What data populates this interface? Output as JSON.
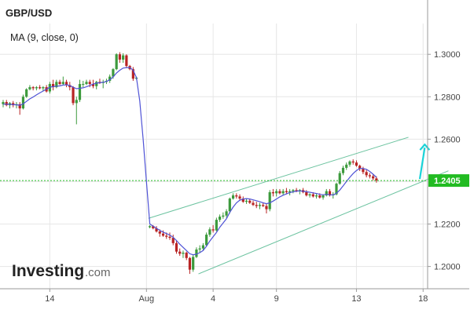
{
  "chart_data": {
    "type": "candlestick",
    "title": "GBP/USD",
    "indicator_label": "MA (9, close, 0)",
    "current_price_label": "1.2405",
    "current_price": 1.2405,
    "ylim": [
      1.1895,
      1.3145
    ],
    "y_ticks": [
      1.2,
      1.22,
      1.24,
      1.26,
      1.28,
      1.3
    ],
    "y_tick_labels": [
      "1.2000",
      "1.2200",
      "1.2400",
      "1.2600",
      "1.2800",
      "1.3000"
    ],
    "x_ticks": [
      {
        "label": "14",
        "index": 14
      },
      {
        "label": "Aug",
        "index": 43
      },
      {
        "label": "4",
        "index": 63
      },
      {
        "label": "9",
        "index": 82
      },
      {
        "label": "13",
        "index": 106
      },
      {
        "label": "18",
        "index": 126
      }
    ],
    "grid": true,
    "colors": {
      "up": "#3c9a3c",
      "down": "#b82424",
      "ma": "#4f53d6",
      "channel": "#6cc3a0",
      "price_line": "#22bb22",
      "arrow": "#19d3d8",
      "grid": "#e6e6e6"
    },
    "candles": [
      [
        1.2765,
        1.2785,
        1.275,
        1.2775
      ],
      [
        1.2775,
        1.2785,
        1.2755,
        1.276
      ],
      [
        1.276,
        1.2775,
        1.2745,
        1.277
      ],
      [
        1.277,
        1.278,
        1.275,
        1.276
      ],
      [
        1.276,
        1.2775,
        1.2745,
        1.2765
      ],
      [
        1.2765,
        1.2775,
        1.2715,
        1.2745
      ],
      [
        1.2745,
        1.281,
        1.274,
        1.28
      ],
      [
        1.28,
        1.284,
        1.2795,
        1.2835
      ],
      [
        1.2835,
        1.2855,
        1.283,
        1.2845
      ],
      [
        1.2845,
        1.285,
        1.283,
        1.284
      ],
      [
        1.284,
        1.285,
        1.283,
        1.2845
      ],
      [
        1.2845,
        1.2855,
        1.2835,
        1.284
      ],
      [
        1.284,
        1.285,
        1.2825,
        1.2845
      ],
      [
        1.2845,
        1.2855,
        1.282,
        1.2825
      ],
      [
        1.2825,
        1.287,
        1.2815,
        1.286
      ],
      [
        1.286,
        1.288,
        1.283,
        1.2845
      ],
      [
        1.2845,
        1.288,
        1.284,
        1.287
      ],
      [
        1.287,
        1.288,
        1.2855,
        1.286
      ],
      [
        1.286,
        1.2895,
        1.2855,
        1.287
      ],
      [
        1.287,
        1.288,
        1.2845,
        1.2855
      ],
      [
        1.2855,
        1.287,
        1.283,
        1.2845
      ],
      [
        1.2845,
        1.285,
        1.276,
        1.277
      ],
      [
        1.277,
        1.28,
        1.267,
        1.2785
      ],
      [
        1.2785,
        1.288,
        1.2775,
        1.286
      ],
      [
        1.286,
        1.2875,
        1.2845,
        1.286
      ],
      [
        1.286,
        1.288,
        1.2855,
        1.287
      ],
      [
        1.287,
        1.288,
        1.2845,
        1.286
      ],
      [
        1.286,
        1.288,
        1.284,
        1.285
      ],
      [
        1.285,
        1.2875,
        1.2835,
        1.287
      ],
      [
        1.287,
        1.2885,
        1.286,
        1.2865
      ],
      [
        1.2865,
        1.288,
        1.284,
        1.287
      ],
      [
        1.287,
        1.2885,
        1.286,
        1.2875
      ],
      [
        1.2875,
        1.2905,
        1.2865,
        1.2895
      ],
      [
        1.2895,
        1.2935,
        1.2885,
        1.293
      ],
      [
        1.293,
        1.3005,
        1.2925,
        1.3
      ],
      [
        1.3,
        1.301,
        1.296,
        1.2975
      ],
      [
        1.2975,
        1.3005,
        1.296,
        1.2995
      ],
      [
        1.2995,
        1.3,
        1.2935,
        1.2945
      ],
      [
        1.2945,
        1.295,
        1.2925,
        1.293
      ],
      [
        1.293,
        1.294,
        1.2875,
        1.2885
      ],
      [
        1.2885,
        1.2895,
        1.288,
        1.289
      ],
      null,
      null,
      null,
      [
        1.2185,
        1.2195,
        1.218,
        1.219
      ],
      [
        1.219,
        1.2195,
        1.2175,
        1.218
      ],
      [
        1.218,
        1.219,
        1.216,
        1.2165
      ],
      [
        1.2165,
        1.2175,
        1.214,
        1.2155
      ],
      [
        1.2155,
        1.217,
        1.214,
        1.2145
      ],
      [
        1.2145,
        1.216,
        1.213,
        1.214
      ],
      [
        1.214,
        1.216,
        1.2125,
        1.2135
      ],
      [
        1.2135,
        1.215,
        1.21,
        1.211
      ],
      [
        1.211,
        1.212,
        1.206,
        1.207
      ],
      [
        1.207,
        1.2085,
        1.205,
        1.206
      ],
      [
        1.206,
        1.2075,
        1.204,
        1.2065
      ],
      [
        1.2065,
        1.207,
        1.203,
        1.204
      ],
      [
        1.204,
        1.2045,
        1.1965,
        1.1985
      ],
      [
        1.1985,
        1.2055,
        1.1975,
        1.2045
      ],
      [
        1.2045,
        1.209,
        1.204,
        1.208
      ],
      [
        1.208,
        1.21,
        1.2065,
        1.2085
      ],
      [
        1.2085,
        1.211,
        1.2075,
        1.21
      ],
      [
        1.21,
        1.216,
        1.2095,
        1.215
      ],
      [
        1.215,
        1.2185,
        1.214,
        1.2175
      ],
      [
        1.2175,
        1.2195,
        1.216,
        1.217
      ],
      [
        1.217,
        1.223,
        1.2165,
        1.222
      ],
      [
        1.222,
        1.2245,
        1.221,
        1.2235
      ],
      [
        1.2235,
        1.2255,
        1.2225,
        1.224
      ],
      [
        1.224,
        1.227,
        1.223,
        1.226
      ],
      [
        1.226,
        1.2325,
        1.225,
        1.232
      ],
      [
        1.232,
        1.2345,
        1.2315,
        1.2335
      ],
      [
        1.2335,
        1.2345,
        1.232,
        1.233
      ],
      [
        1.233,
        1.234,
        1.231,
        1.232
      ],
      [
        1.232,
        1.233,
        1.23,
        1.2305
      ],
      [
        1.2305,
        1.232,
        1.2295,
        1.231
      ],
      [
        1.231,
        1.232,
        1.2295,
        1.23
      ],
      [
        1.23,
        1.231,
        1.2285,
        1.229
      ],
      [
        1.229,
        1.2305,
        1.2275,
        1.2285
      ],
      [
        1.2285,
        1.23,
        1.227,
        1.229
      ],
      [
        1.229,
        1.23,
        1.228,
        1.2285
      ],
      [
        1.2285,
        1.2295,
        1.225,
        1.227
      ],
      [
        1.227,
        1.236,
        1.226,
        1.235
      ],
      [
        1.235,
        1.2365,
        1.233,
        1.2345
      ],
      [
        1.2345,
        1.2365,
        1.233,
        1.2355
      ],
      [
        1.2355,
        1.2365,
        1.234,
        1.2345
      ],
      [
        1.2345,
        1.2365,
        1.2335,
        1.2355
      ],
      [
        1.2355,
        1.237,
        1.234,
        1.235
      ],
      [
        1.235,
        1.2365,
        1.2335,
        1.2355
      ],
      [
        1.2355,
        1.2365,
        1.2345,
        1.236
      ],
      [
        1.236,
        1.237,
        1.235,
        1.2355
      ],
      [
        1.2355,
        1.2365,
        1.234,
        1.236
      ],
      [
        1.236,
        1.237,
        1.2345,
        1.235
      ],
      [
        1.235,
        1.236,
        1.233,
        1.2335
      ],
      [
        1.2335,
        1.2345,
        1.2325,
        1.234
      ],
      [
        1.234,
        1.235,
        1.2325,
        1.233
      ],
      [
        1.233,
        1.2345,
        1.232,
        1.2335
      ],
      [
        1.2335,
        1.2345,
        1.232,
        1.2325
      ],
      [
        1.2325,
        1.234,
        1.2315,
        1.2335
      ],
      [
        1.2335,
        1.2365,
        1.233,
        1.2355
      ],
      [
        1.2355,
        1.2365,
        1.233,
        1.2335
      ],
      [
        1.2335,
        1.235,
        1.232,
        1.234
      ],
      [
        1.234,
        1.2395,
        1.2335,
        1.239
      ],
      [
        1.239,
        1.245,
        1.2385,
        1.244
      ],
      [
        1.244,
        1.2475,
        1.243,
        1.2465
      ],
      [
        1.2465,
        1.249,
        1.2455,
        1.248
      ],
      [
        1.248,
        1.25,
        1.247,
        1.2495
      ],
      [
        1.2495,
        1.2505,
        1.248,
        1.249
      ],
      [
        1.249,
        1.25,
        1.247,
        1.2475
      ],
      [
        1.2475,
        1.248,
        1.245,
        1.246
      ],
      [
        1.246,
        1.247,
        1.2435,
        1.2445
      ],
      [
        1.2445,
        1.2455,
        1.242,
        1.243
      ],
      [
        1.243,
        1.244,
        1.2415,
        1.2425
      ],
      [
        1.2425,
        1.2435,
        1.2405,
        1.2415
      ],
      [
        1.2415,
        1.2425,
        1.2395,
        1.2405
      ]
    ],
    "ma": [
      1.2765,
      1.2765,
      1.2764,
      1.2763,
      1.2762,
      1.276,
      1.2766,
      1.2778,
      1.279,
      1.2799,
      1.2809,
      1.2818,
      1.2827,
      1.2836,
      1.2845,
      1.2848,
      1.285,
      1.2851,
      1.2855,
      1.2856,
      1.2853,
      1.2845,
      1.2838,
      1.284,
      1.2842,
      1.2847,
      1.2853,
      1.286,
      1.2864,
      1.2866,
      1.2868,
      1.2872,
      1.288,
      1.2893,
      1.2912,
      1.2925,
      1.2935,
      1.2937,
      1.2938,
      1.2925,
      1.289,
      1.278,
      1.26,
      1.24,
      1.22,
      1.219,
      1.218,
      1.217,
      1.2162,
      1.2155,
      1.2148,
      1.2138,
      1.2122,
      1.2105,
      1.209,
      1.2075,
      1.206,
      1.2055,
      1.2058,
      1.2065,
      1.2075,
      1.2095,
      1.212,
      1.214,
      1.216,
      1.2185,
      1.2205,
      1.2225,
      1.2255,
      1.228,
      1.23,
      1.2312,
      1.2318,
      1.232,
      1.2318,
      1.2314,
      1.231,
      1.2305,
      1.23,
      1.2296,
      1.23,
      1.2308,
      1.2318,
      1.2328,
      1.2336,
      1.2342,
      1.2348,
      1.2352,
      1.2355,
      1.2356,
      1.2355,
      1.2352,
      1.235,
      1.2347,
      1.2344,
      1.234,
      1.2338,
      1.234,
      1.2338,
      1.2337,
      1.2345,
      1.236,
      1.238,
      1.24,
      1.242,
      1.2438,
      1.2452,
      1.2462,
      1.2462,
      1.2458,
      1.2448,
      1.2435,
      1.242
    ],
    "channel_upper": [
      {
        "index": 43.6,
        "y": 1.2227
      },
      {
        "index": 121.6,
        "y": 1.2609
      }
    ],
    "channel_lower": [
      {
        "index": 58.6,
        "y": 1.1965
      },
      {
        "index": 133.6,
        "y": 1.2451
      }
    ],
    "arrow": {
      "from": {
        "index": 125,
        "y": 1.2412
      },
      "to": {
        "index": 126.5,
        "y": 1.2575
      }
    }
  },
  "branding": {
    "logo_main": "Investing",
    "logo_sub": ".com"
  }
}
